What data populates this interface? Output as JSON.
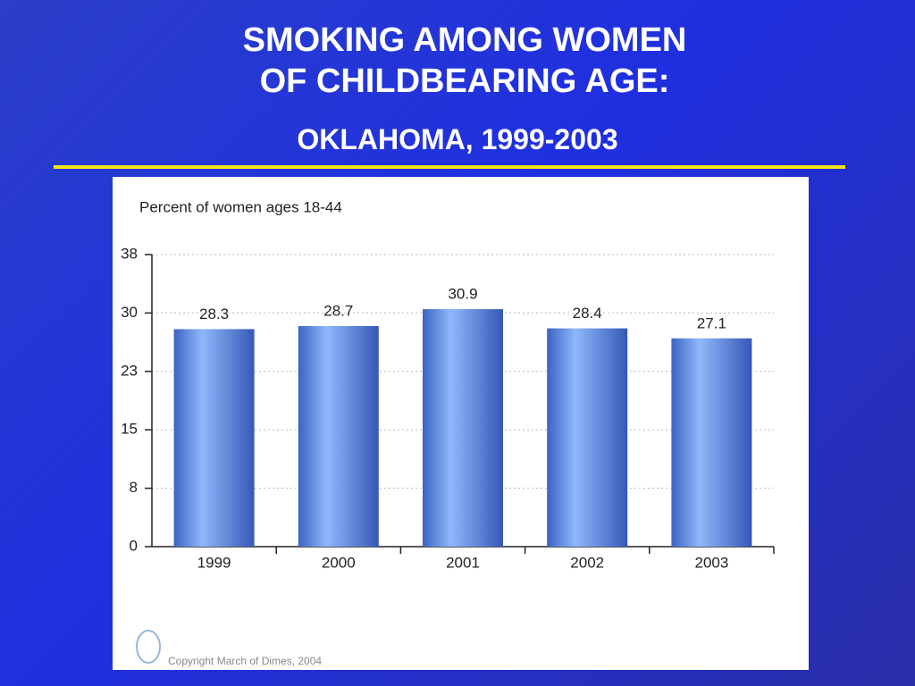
{
  "chart_data": {
    "type": "bar",
    "title": "SMOKING AMONG WOMEN OF CHILDBEARING AGE:",
    "subtitle": "OKLAHOMA, 1999-2003",
    "y_label": "Percent of women ages 18-44",
    "source": "Copyright March of Dimes, 2004",
    "categories": [
      "1999",
      "2000",
      "2001",
      "2002",
      "2003"
    ],
    "values": [
      28.3,
      28.7,
      30.9,
      28.4,
      27.1
    ],
    "color": "#5b82d8",
    "ylim": [
      0,
      38
    ],
    "yticks": [
      0,
      {
        "value": 7.6,
        "label": "8"
      },
      {
        "value": 15.2,
        "label": "15"
      },
      {
        "value": 22.8,
        "label": "23"
      },
      {
        "value": 30.4,
        "label": "30"
      },
      38
    ],
    "grid": true
  }
}
